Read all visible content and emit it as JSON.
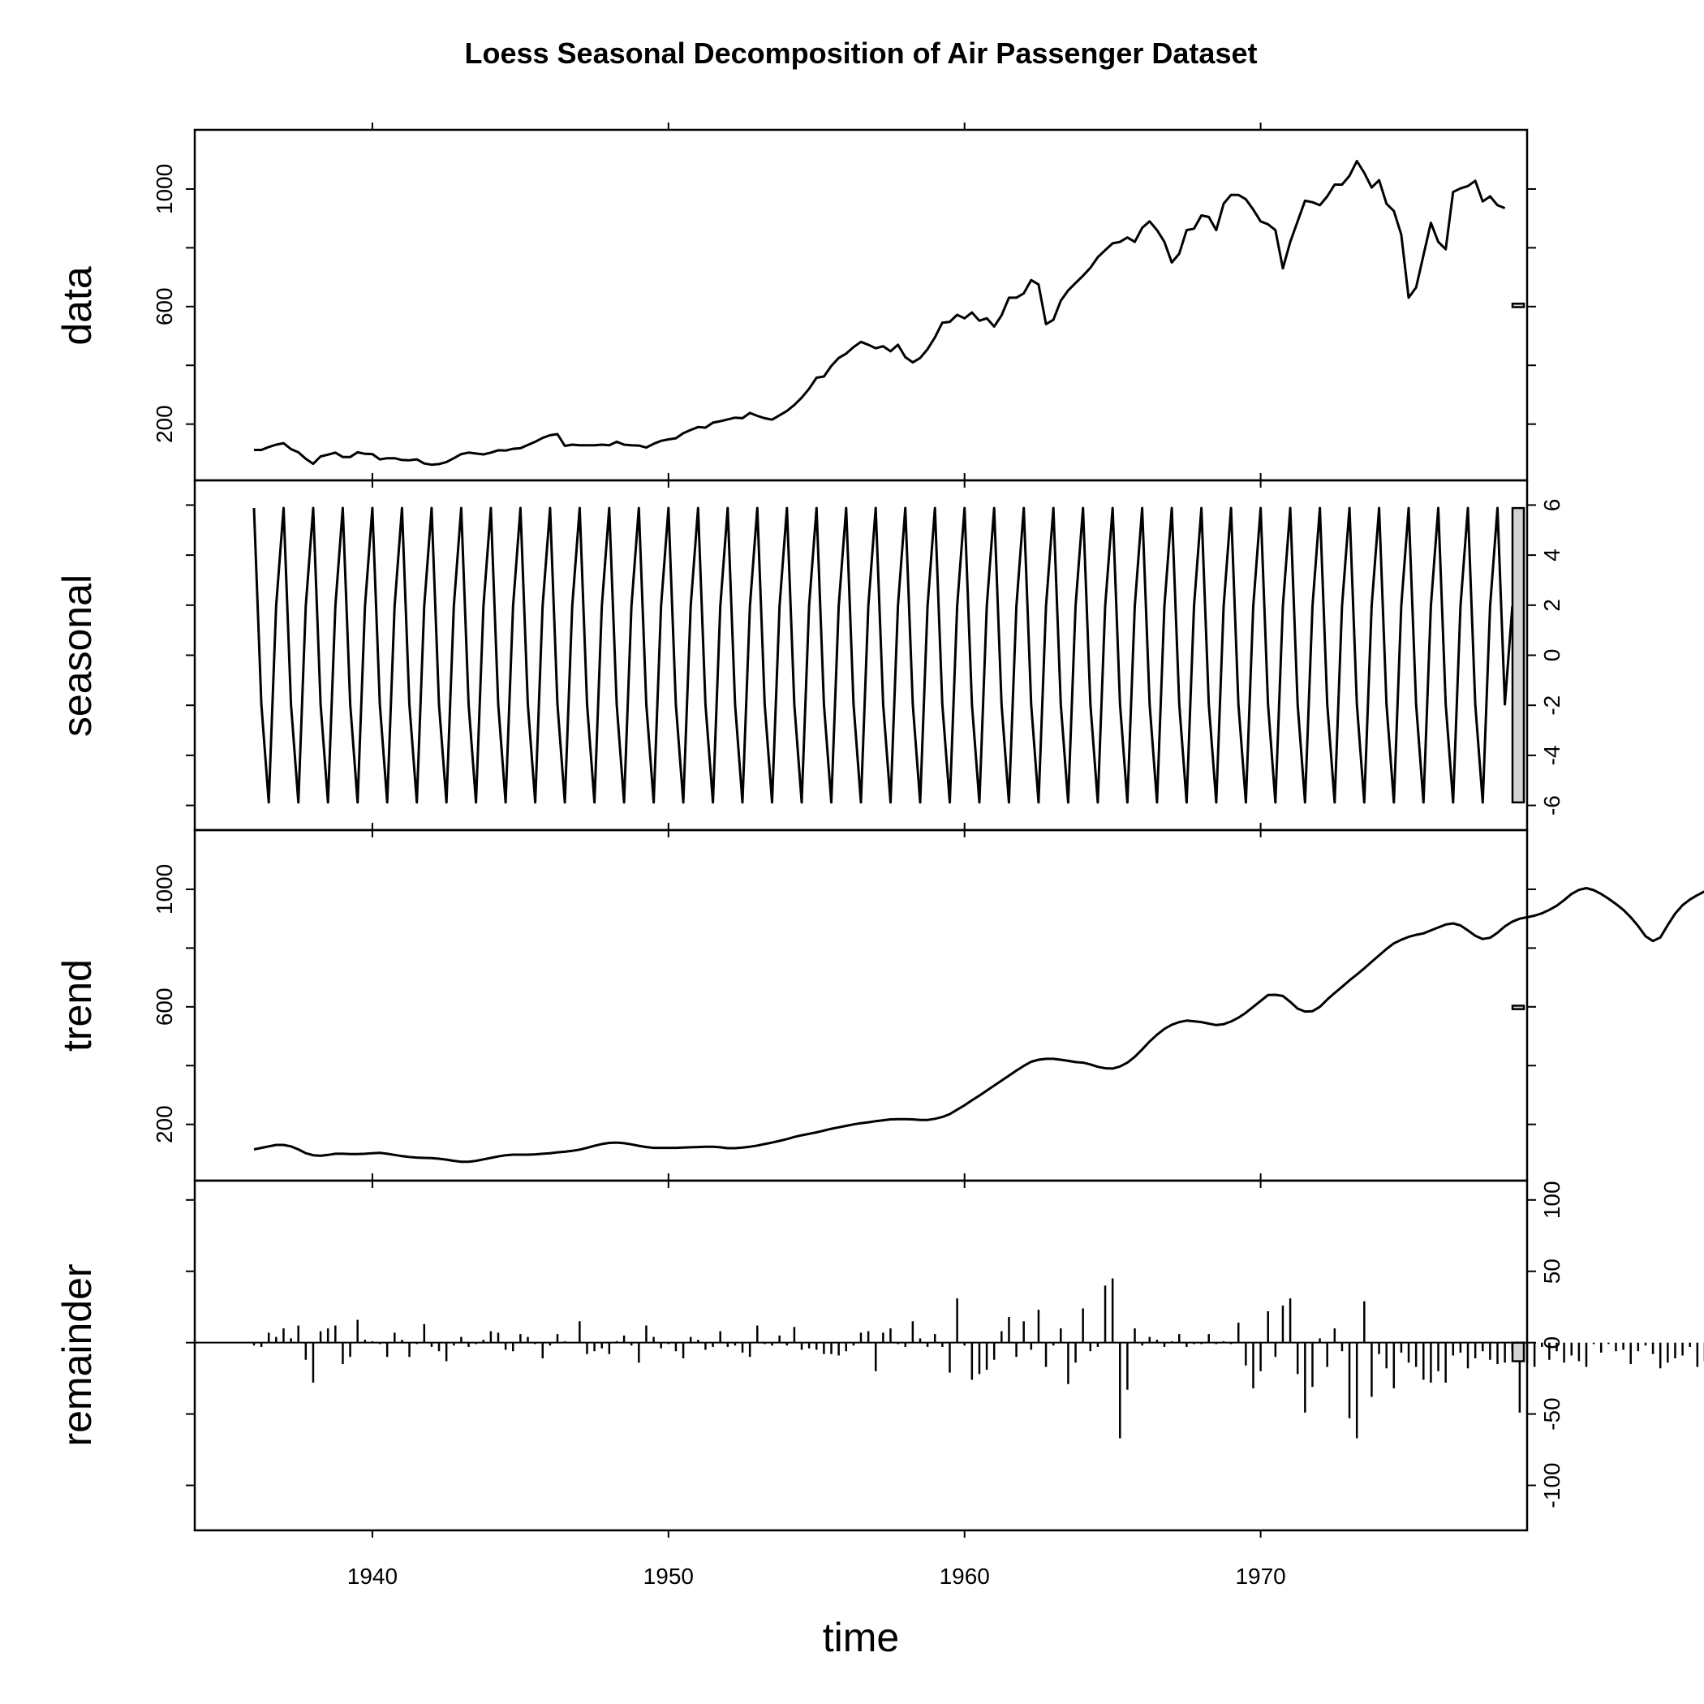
{
  "chart_data": {
    "type": "line",
    "title": "Loess Seasonal Decomposition of Air Passenger Dataset",
    "xlabel": "time",
    "xlim": [
      1934,
      1979
    ],
    "x_ticks": [
      1940,
      1950,
      1960,
      1970
    ],
    "x_start": 1936,
    "x_step": 0.25,
    "panels": [
      {
        "name": "data",
        "ylabel": "data",
        "ylim": [
          50,
          1160
        ],
        "tick_side": "left",
        "ticks": [
          200,
          400,
          600,
          800,
          1000
        ],
        "tick_labels": [
          "200",
          "600",
          "1000"
        ],
        "scale_bar": "right",
        "values": [
          112,
          112,
          122,
          130,
          135,
          115,
          104,
          82,
          65,
          90,
          96,
          103,
          88,
          88,
          104,
          99,
          98,
          80,
          84,
          84,
          78,
          77,
          80,
          66,
          62,
          64,
          71,
          84,
          98,
          103,
          100,
          97,
          103,
          111,
          110,
          116,
          118,
          129,
          140,
          153,
          162,
          166,
          126,
          130,
          128,
          128,
          128,
          130,
          128,
          140,
          130,
          128,
          127,
          120,
          133,
          143,
          148,
          152,
          169,
          180,
          190,
          188,
          205,
          210,
          216,
          222,
          220,
          238,
          228,
          220,
          215,
          230,
          245,
          265,
          290,
          320,
          358,
          362,
          398,
          425,
          440,
          462,
          480,
          470,
          458,
          465,
          448,
          470,
          428,
          410,
          425,
          455,
          495,
          545,
          548,
          572,
          560,
          580,
          552,
          560,
          532,
          570,
          630,
          630,
          645,
          690,
          675,
          540,
          555,
          620,
          655,
          680,
          705,
          732,
          768,
          792,
          815,
          820,
          835,
          820,
          868,
          890,
          860,
          820,
          750,
          780,
          860,
          865,
          910,
          905,
          860,
          950,
          980,
          980,
          965,
          930,
          890,
          880,
          860,
          730,
          820,
          890,
          960,
          955,
          945,
          975,
          1015,
          1015,
          1045,
          1095,
          1055,
          1005,
          1030,
          950,
          925,
          845,
          630,
          665,
          775,
          885,
          820,
          795,
          990,
          1002,
          1010,
          1028,
          958,
          975,
          945,
          935
        ]
      },
      {
        "name": "seasonal",
        "ylabel": "seasonal",
        "ylim": [
          -6.5,
          6.5
        ],
        "tick_side": "right",
        "ticks": [
          -6,
          -4,
          -2,
          0,
          2,
          4,
          6
        ],
        "tick_labels": [
          "-6",
          "-4",
          "-2",
          "0",
          "2",
          "4",
          "6"
        ],
        "scale_bar": "right",
        "period_values": [
          5.88,
          -1.96,
          -5.88,
          1.96
        ],
        "last_value": 1.96
      },
      {
        "name": "trend",
        "ylabel": "trend",
        "ylim": [
          50,
          1160
        ],
        "tick_side": "left",
        "ticks": [
          200,
          400,
          600,
          800,
          1000
        ],
        "tick_labels": [
          "200",
          "600",
          "1000"
        ],
        "scale_bar": "right",
        "values": [
          115,
          120,
          125,
          130,
          130,
          125,
          115,
          102,
          95,
          93,
          96,
          100,
          100,
          99,
          99,
          100,
          102,
          103,
          100,
          96,
          92,
          89,
          87,
          86,
          85,
          83,
          80,
          76,
          73,
          73,
          76,
          81,
          86,
          91,
          95,
          97,
          97,
          97,
          98,
          100,
          102,
          105,
          107,
          110,
          114,
          120,
          127,
          133,
          137,
          138,
          136,
          132,
          127,
          123,
          120,
          120,
          120,
          120,
          121,
          122,
          123,
          124,
          124,
          122,
          119,
          119,
          121,
          124,
          128,
          133,
          138,
          144,
          150,
          157,
          163,
          168,
          173,
          179,
          185,
          190,
          195,
          200,
          204,
          207,
          211,
          214,
          217,
          218,
          218,
          217,
          215,
          215,
          219,
          225,
          235,
          250,
          265,
          282,
          298,
          315,
          332,
          349,
          366,
          383,
          399,
          413,
          420,
          423,
          423,
          420,
          416,
          412,
          410,
          404,
          396,
          391,
          390,
          397,
          410,
          430,
          455,
          482,
          505,
          525,
          539,
          548,
          553,
          551,
          548,
          543,
          538,
          541,
          550,
          563,
          580,
          600,
          620,
          640,
          641,
          637,
          617,
          594,
          584,
          585,
          600,
          625,
          647,
          668,
          690,
          710,
          731,
          753,
          775,
          797,
          816,
          828,
          838,
          845,
          850,
          860,
          870,
          880,
          884,
          877,
          860,
          842,
          831,
          835,
          852,
          874,
          890,
          900,
          905,
          910,
          918,
          930,
          944,
          963,
          984,
          998,
          1004,
          997,
          984,
          968,
          950,
          930,
          905,
          875,
          840,
          824,
          836,
          878,
          917,
          946,
          965,
          980,
          993,
          1008,
          1024,
          1045,
          1070,
          1090,
          1102,
          1105,
          1100,
          1085,
          1062,
          1030,
          998,
          950,
          880,
          800,
          750,
          735,
          740,
          770,
          800,
          830,
          850,
          866,
          885,
          910,
          950,
          990,
          1010,
          1013,
          1005,
          995,
          985,
          972,
          960,
          948,
          936
        ]
      },
      {
        "name": "remainder",
        "ylabel": "remainder",
        "ylim": [
          -123,
          105
        ],
        "tick_side": "right",
        "ticks": [
          -100,
          -50,
          0,
          50,
          100
        ],
        "tick_labels": [
          "-100",
          "-50",
          "0",
          "50",
          "100"
        ],
        "scale_bar": "right",
        "values": [
          -2,
          -3,
          7,
          4,
          10,
          3,
          12,
          -12,
          -28,
          8,
          10,
          12,
          -15,
          -10,
          16,
          2,
          1,
          -1,
          -10,
          7,
          2,
          -10,
          -1,
          13,
          -3,
          -6,
          -13,
          -2,
          4,
          -3,
          -1,
          2,
          8,
          7,
          -5,
          -6,
          6,
          4,
          -1,
          -11,
          -2,
          6,
          1,
          0,
          15,
          -8,
          -6,
          -4,
          -8,
          1,
          5,
          -2,
          -14,
          12,
          4,
          -4,
          -1,
          -6,
          -11,
          4,
          2,
          -5,
          -3,
          8,
          -3,
          -2,
          -7,
          -10,
          12,
          -1,
          -2,
          5,
          -2,
          11,
          -5,
          -4,
          -5,
          -8,
          -8,
          -9,
          -6,
          -2,
          7,
          8,
          -20,
          7,
          10,
          -1,
          -3,
          15,
          3,
          -3,
          6,
          -3,
          -21,
          31,
          -2,
          -26,
          -22,
          -19,
          -12,
          8,
          18,
          -10,
          15,
          -5,
          23,
          -17,
          -2,
          10,
          -29,
          -14,
          24,
          -6,
          -3,
          40,
          45,
          -67,
          -33,
          10,
          -2,
          4,
          2,
          -3,
          1,
          6,
          -3,
          -1,
          -1,
          6,
          -1,
          1,
          -1,
          14,
          -16,
          -32,
          -20,
          22,
          -10,
          26,
          31,
          -22,
          -49,
          -31,
          3,
          -17,
          10,
          -6,
          -53,
          -67,
          29,
          -38,
          -8,
          -18,
          -32,
          -7,
          -14,
          -17,
          -26,
          -28,
          -20,
          -28,
          -9,
          -7,
          -18,
          -11,
          -6,
          -12,
          -15,
          -14,
          -6,
          -49,
          -14,
          -17,
          -3,
          -12,
          -6,
          -14,
          -9,
          -13,
          -17,
          -1,
          -7,
          -1,
          -6,
          -5,
          -15,
          -6,
          -2,
          -8,
          -18,
          -14,
          -11,
          -9,
          -3,
          -17,
          -13,
          -4,
          -16,
          -11,
          -7,
          -8,
          -12,
          -4,
          -2,
          -2,
          -2,
          -11,
          -3,
          -7,
          -1,
          -2,
          -13,
          -7,
          -10,
          -9,
          -9,
          -1,
          -14,
          -16,
          -21,
          -12,
          -4,
          -2,
          -11,
          -20,
          -18,
          -1,
          -4,
          -4,
          -4,
          -2
        ]
      }
    ]
  }
}
